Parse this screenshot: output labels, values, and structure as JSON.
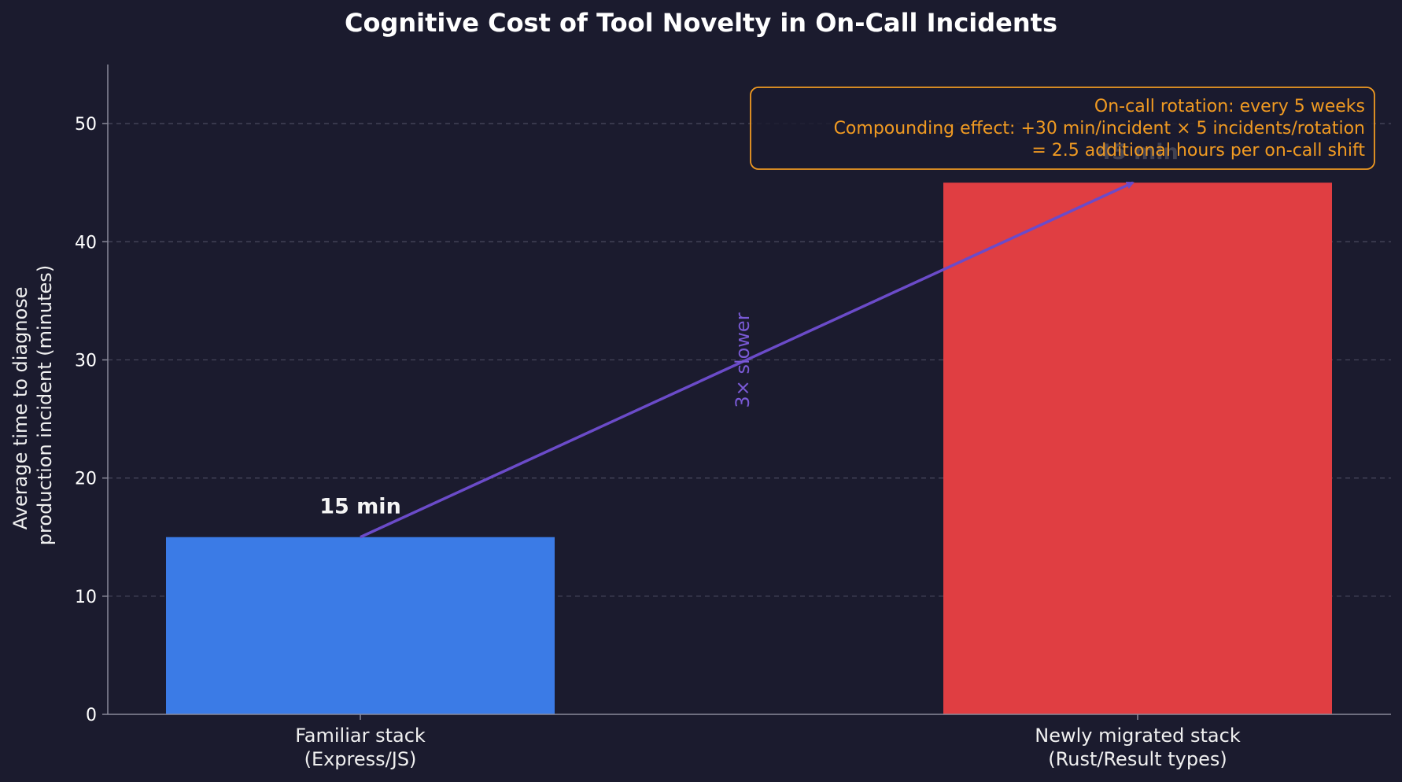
{
  "chart_data": {
    "type": "bar",
    "title": "Cognitive Cost of Tool Novelty in On-Call Incidents",
    "ylabel_lines": [
      "Average time to diagnose",
      "production incident (minutes)"
    ],
    "categories": [
      [
        "Familiar stack",
        "(Express/JS)"
      ],
      [
        "Newly migrated stack",
        "(Rust/Result types)"
      ]
    ],
    "values": [
      15,
      45
    ],
    "value_labels": [
      "15 min",
      "45 min"
    ],
    "bar_colors": [
      "#3b7be6",
      "#e03e42"
    ],
    "ylim": [
      0,
      55
    ],
    "yticks": [
      0,
      10,
      20,
      30,
      40,
      50
    ],
    "grid": true,
    "arrow": {
      "from_value": 15,
      "to_value": 45,
      "label": "3× slower",
      "color": "#6b4bc9"
    },
    "annotation": {
      "lines": [
        "On-call rotation: every 5 weeks",
        "Compounding effect: +30 min/incident × 5 incidents/rotation",
        "= 2.5 additional hours per on-call shift"
      ],
      "color": "#f09a22",
      "placement": "top-right"
    }
  },
  "colors": {
    "background": "#1b1b2e",
    "grid": "#4a4a5e",
    "axis": "#8a8a9a"
  }
}
